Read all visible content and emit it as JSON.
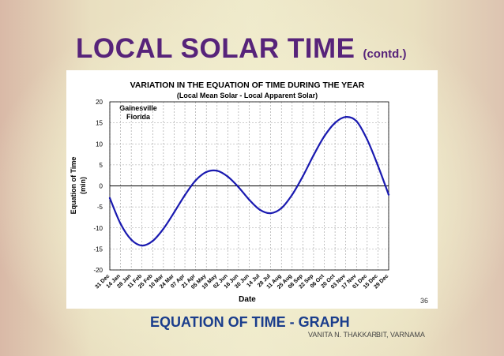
{
  "slide": {
    "title": "LOCAL SOLAR TIME",
    "title_suffix": "(contd.)",
    "subtitle": "EQUATION OF TIME - GRAPH",
    "page_number": "36",
    "author": "VANITA N. THAKKAR",
    "institute": "BIT, VARNAMA",
    "colors": {
      "title": "#57237a",
      "subtitle": "#1a3d8c",
      "curve": "#1a1ab0"
    }
  },
  "chart_data": {
    "type": "line",
    "title": "VARIATION IN THE EQUATION OF TIME DURING THE YEAR",
    "subtitle": "(Local Mean Solar - Local Apparent Solar)",
    "annotation": [
      "Gainesville",
      "Florida"
    ],
    "xlabel": "Date",
    "ylabel": [
      "Equation of Time",
      "(min)"
    ],
    "ylim": [
      -20,
      20
    ],
    "yticks": [
      20,
      15,
      10,
      5,
      0,
      -5,
      -10,
      -15,
      -20
    ],
    "categories": [
      "31 Dec",
      "14 Jan",
      "28 Jan",
      "11 Feb",
      "25 Feb",
      "10 Mar",
      "24 Mar",
      "07 Apr",
      "21 Apr",
      "05 May",
      "19 May",
      "02 Jun",
      "16 Jun",
      "30 Jun",
      "14 Jul",
      "28 Jul",
      "11 Aug",
      "25 Aug",
      "08 Sep",
      "22 Sep",
      "06 Oct",
      "20 Oct",
      "03 Nov",
      "17 Nov",
      "01 Dec",
      "15 Dec",
      "29 Dec"
    ],
    "grid": true,
    "series": [
      {
        "values": [
          -2.9,
          -9.0,
          -12.8,
          -14.2,
          -13.1,
          -10.2,
          -6.3,
          -2.2,
          1.3,
          3.3,
          3.6,
          2.2,
          -0.3,
          -3.3,
          -5.7,
          -6.5,
          -5.3,
          -2.1,
          2.3,
          7.3,
          11.8,
          15.0,
          16.4,
          15.4,
          11.0,
          4.8,
          -2.1
        ]
      }
    ]
  }
}
